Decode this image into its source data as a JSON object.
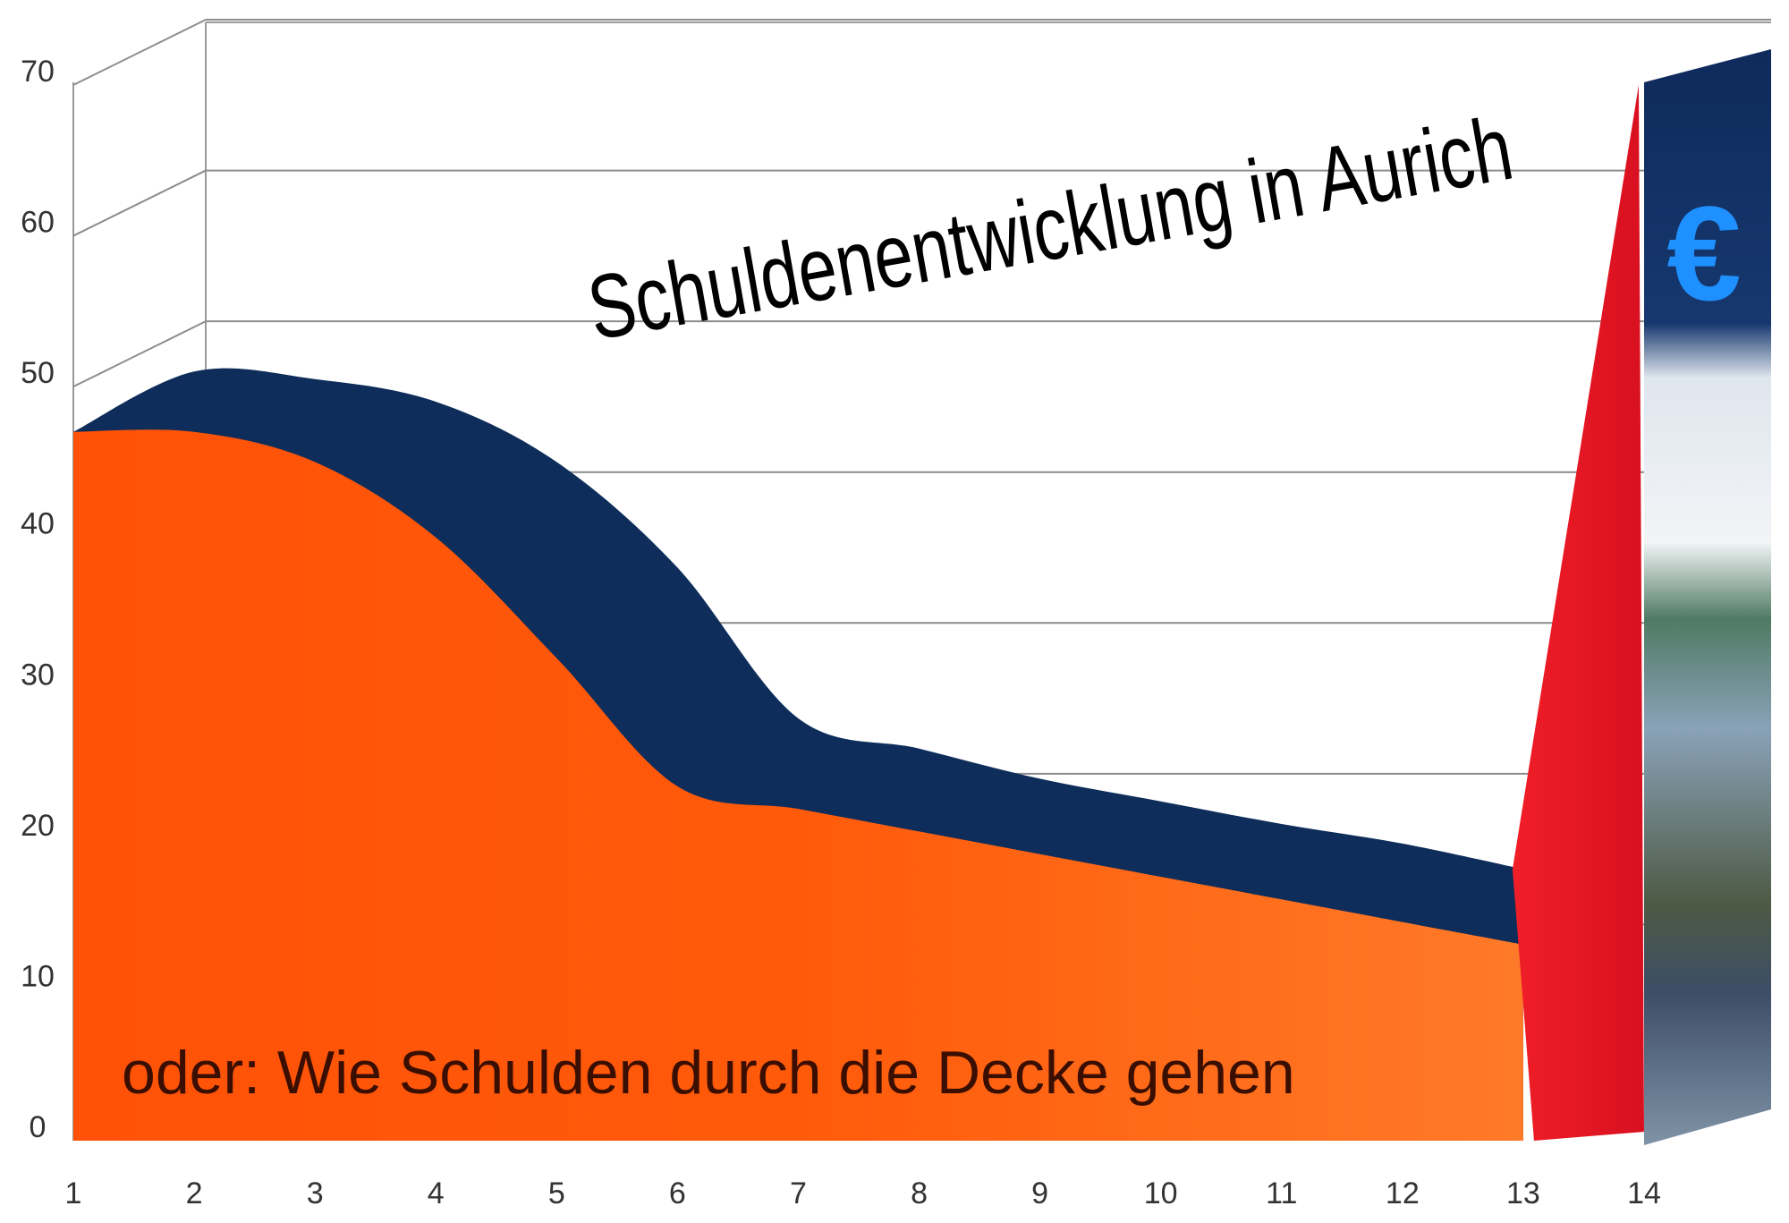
{
  "chart_data": {
    "type": "area",
    "title": "Schuldenentwicklung in Aurich",
    "subtitle": "oder: Wie Schulden durch die Decke gehen",
    "xlabel": "",
    "ylabel": "",
    "x": [
      1,
      2,
      3,
      4,
      5,
      6,
      7,
      8,
      9,
      10,
      11,
      12,
      13,
      14
    ],
    "ylim": [
      0,
      70
    ],
    "yticks": [
      0,
      10,
      20,
      30,
      40,
      50,
      60,
      70
    ],
    "grid": true,
    "series": [
      {
        "values": [
          47,
          47,
          45,
          40,
          32,
          23.5,
          22,
          20.5,
          19,
          17.5,
          16,
          14.5,
          13,
          0
        ],
        "color": "#ff5a0a"
      },
      {
        "values": [
          47,
          51,
          50.5,
          49,
          45,
          38,
          28,
          26,
          24,
          22.5,
          21,
          19.7,
          18,
          0
        ],
        "color": "#0e2d5a"
      }
    ],
    "spike": {
      "from_x": 13,
      "to_x": 14,
      "peak_value": 70,
      "color": "#ee1c25"
    },
    "side_panel_icon": "euro-sign-icon",
    "side_panel_symbol": "€"
  }
}
